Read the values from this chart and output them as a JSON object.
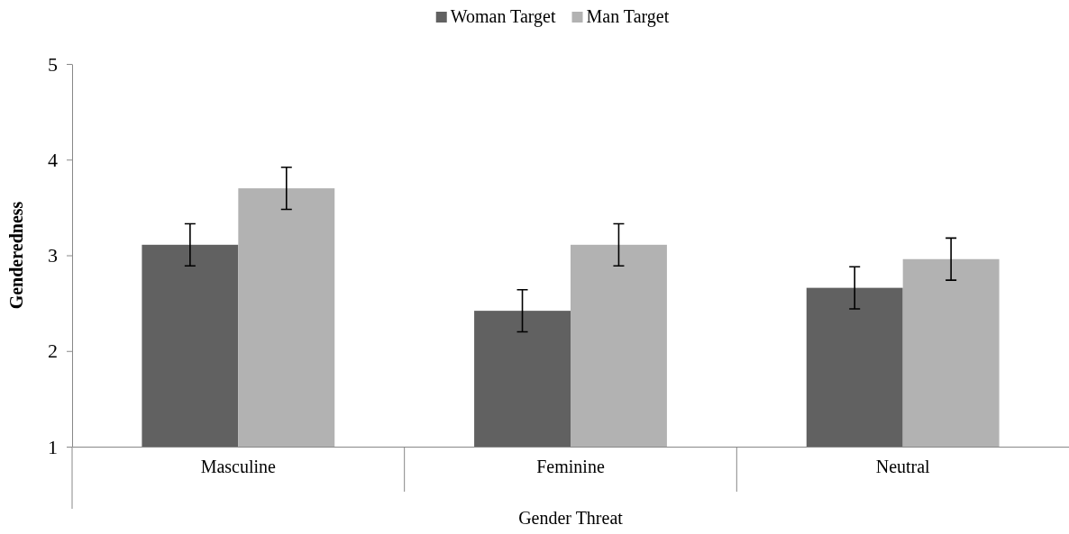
{
  "chart_data": {
    "type": "bar",
    "xlabel": "Gender Threat",
    "ylabel": "Genderedness",
    "categories": [
      "Masculine",
      "Feminine",
      "Neutral"
    ],
    "series": [
      {
        "name": "Woman Target",
        "color": "#616161",
        "values": [
          3.11,
          2.42,
          2.66
        ],
        "errors": [
          0.22,
          0.22,
          0.22
        ]
      },
      {
        "name": "Man Target",
        "color": "#b2b2b2",
        "values": [
          3.7,
          3.11,
          2.96
        ],
        "errors": [
          0.22,
          0.22,
          0.22
        ]
      }
    ],
    "ylim": [
      1,
      5
    ],
    "yticks": [
      1,
      2,
      3,
      4,
      5
    ],
    "grid": false,
    "legend": "top"
  }
}
